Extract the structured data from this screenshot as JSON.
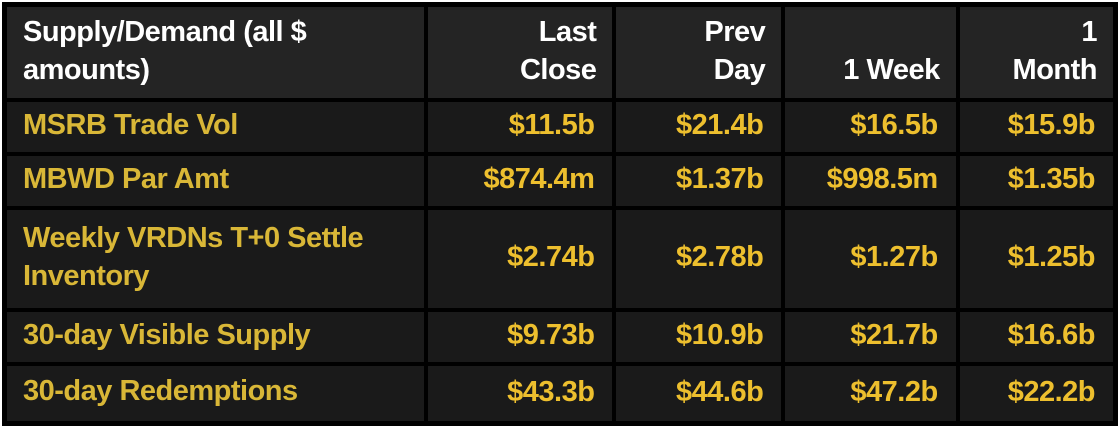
{
  "chart_data": {
    "type": "table",
    "title": "Supply/Demand (all $ amounts)",
    "corner_header": "Supply/Demand (all $ amounts)",
    "columns": [
      "Last Close",
      "Prev Day",
      "1 Week",
      "1 Month"
    ],
    "rows": [
      {
        "label": "MSRB Trade Vol",
        "values": [
          "$11.5b",
          "$21.4b",
          "$16.5b",
          "$15.9b"
        ]
      },
      {
        "label": "MBWD Par Amt",
        "values": [
          "$874.4m",
          "$1.37b",
          "$998.5m",
          "$1.35b"
        ]
      },
      {
        "label": "Weekly VRDNs T+0 Settle Inventory",
        "values": [
          "$2.74b",
          "$2.78b",
          "$1.27b",
          "$1.25b"
        ]
      },
      {
        "label": "30-day Visible Supply",
        "values": [
          "$9.73b",
          "$10.9b",
          "$21.7b",
          "$16.6b"
        ]
      },
      {
        "label": "30-day Redemptions",
        "values": [
          "$43.3b",
          "$44.6b",
          "$47.2b",
          "$22.2b"
        ]
      }
    ]
  },
  "display": {
    "corner_header_lines": "Supply/Demand (all $\namounts)",
    "column_lines": [
      "Last\nClose",
      "Prev\nDay",
      "1 Week",
      "1\nMonth"
    ],
    "row_label_lines": [
      "MSRB Trade Vol",
      "MBWD Par Amt",
      "Weekly VRDNs T+0 Settle\nInventory",
      "30-day Visible Supply",
      "30-day Redemptions"
    ]
  },
  "colors": {
    "frame": "#ffffff",
    "grid": "#000000",
    "header_bg": "#242424",
    "row_bg": "#1a1a1a",
    "header_text": "#ffffff",
    "label_text": "#d9b737",
    "value_text": "#edbf2e"
  }
}
